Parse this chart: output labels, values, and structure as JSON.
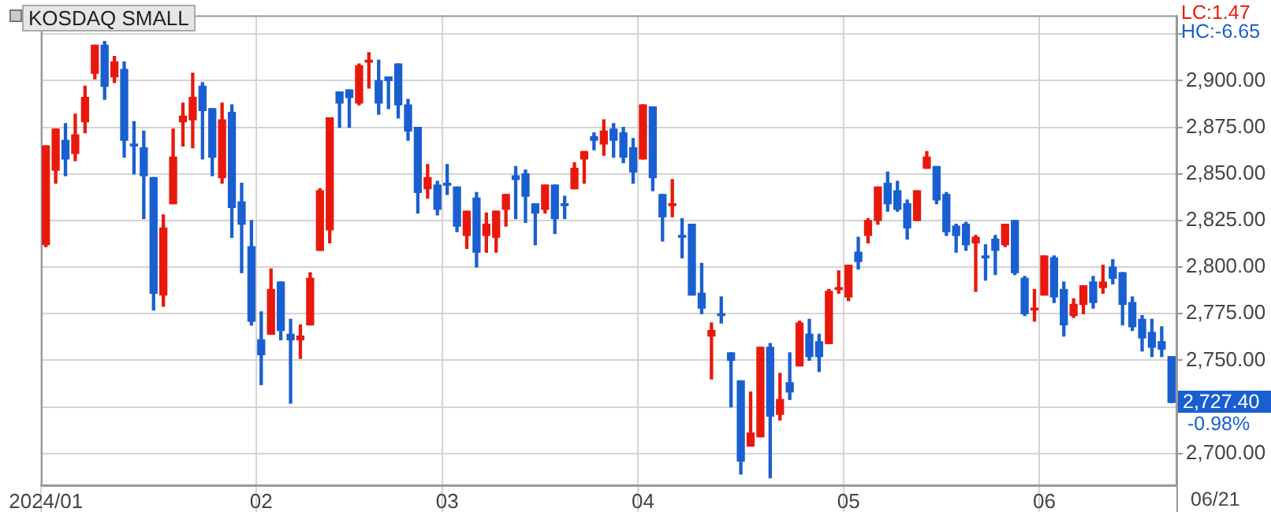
{
  "chart_data": {
    "type": "candlestick",
    "title": "KOSDAQ SMALL",
    "categories": [
      "2024/01",
      null,
      null,
      null,
      null,
      null,
      null,
      null,
      null,
      null,
      null,
      null,
      null,
      null,
      null,
      null,
      null,
      null,
      null,
      null,
      null,
      null,
      "02",
      null,
      null,
      null,
      null,
      null,
      null,
      null,
      null,
      null,
      null,
      null,
      null,
      null,
      null,
      null,
      null,
      null,
      null,
      "03",
      null,
      null,
      null,
      null,
      null,
      null,
      null,
      null,
      null,
      null,
      null,
      null,
      null,
      null,
      null,
      null,
      null,
      null,
      null,
      "04",
      null,
      null,
      null,
      null,
      null,
      null,
      null,
      null,
      null,
      null,
      null,
      null,
      null,
      null,
      null,
      null,
      null,
      null,
      null,
      null,
      "05",
      null,
      null,
      null,
      null,
      null,
      null,
      null,
      null,
      null,
      null,
      null,
      null,
      null,
      null,
      null,
      null,
      null,
      null,
      null,
      "06",
      null,
      null,
      null,
      null,
      null,
      null,
      null,
      null,
      null,
      null,
      null,
      null,
      null
    ],
    "ohlc": [
      [
        2812,
        2865,
        2811,
        2865
      ],
      [
        2852,
        2874,
        2845,
        2874
      ],
      [
        2868,
        2877,
        2849,
        2858
      ],
      [
        2861,
        2882,
        2857,
        2871
      ],
      [
        2878,
        2897,
        2872,
        2891
      ],
      [
        2904,
        2919,
        2901,
        2919
      ],
      [
        2919,
        2921,
        2890,
        2897
      ],
      [
        2902,
        2913,
        2899,
        2910
      ],
      [
        2906,
        2910,
        2859,
        2868
      ],
      [
        2866,
        2878,
        2850,
        2865
      ],
      [
        2864,
        2873,
        2826,
        2849
      ],
      [
        2848,
        2848,
        2777,
        2786
      ],
      [
        2785,
        2828,
        2779,
        2821
      ],
      [
        2834,
        2874,
        2834,
        2859
      ],
      [
        2878,
        2888,
        2865,
        2881
      ],
      [
        2879,
        2904,
        2864,
        2891
      ],
      [
        2897,
        2899,
        2858,
        2884
      ],
      [
        2885,
        2885,
        2849,
        2859
      ],
      [
        2848,
        2888,
        2845,
        2879
      ],
      [
        2883,
        2887,
        2816,
        2832
      ],
      [
        2835,
        2845,
        2797,
        2823
      ],
      [
        2811,
        2825,
        2769,
        2771
      ],
      [
        2761,
        2776,
        2737,
        2753
      ],
      [
        2764,
        2799,
        2764,
        2788
      ],
      [
        2792,
        2792,
        2761,
        2766
      ],
      [
        2764,
        2772,
        2727,
        2761
      ],
      [
        2761,
        2769,
        2751,
        2763
      ],
      [
        2769,
        2797,
        2769,
        2794
      ],
      [
        2809,
        2842,
        2809,
        2841
      ],
      [
        2820,
        2880,
        2813,
        2880
      ],
      [
        2894,
        2894,
        2875,
        2888
      ],
      [
        2895,
        2895,
        2875,
        2891
      ],
      [
        2888,
        2909,
        2887,
        2908
      ],
      [
        2910,
        2915,
        2896,
        2911
      ],
      [
        2900,
        2911,
        2882,
        2888
      ],
      [
        2902,
        2902,
        2885,
        2900
      ],
      [
        2909,
        2909,
        2880,
        2887
      ],
      [
        2887,
        2890,
        2868,
        2873
      ],
      [
        2875,
        2875,
        2829,
        2840
      ],
      [
        2842,
        2855,
        2837,
        2848
      ],
      [
        2844,
        2846,
        2828,
        2831
      ],
      [
        2845,
        2855,
        2839,
        2844
      ],
      [
        2843,
        2843,
        2819,
        2822
      ],
      [
        2817,
        2830,
        2810,
        2830
      ],
      [
        2837,
        2840,
        2800,
        2808
      ],
      [
        2817,
        2829,
        2808,
        2823
      ],
      [
        2816,
        2830,
        2808,
        2830
      ],
      [
        2831,
        2839,
        2822,
        2839
      ],
      [
        2849,
        2854,
        2826,
        2847
      ],
      [
        2850,
        2852,
        2824,
        2838
      ],
      [
        2834,
        2834,
        2812,
        2829
      ],
      [
        2831,
        2844,
        2829,
        2844
      ],
      [
        2844,
        2844,
        2818,
        2826
      ],
      [
        2834,
        2838,
        2826,
        2833
      ],
      [
        2842,
        2856,
        2842,
        2853
      ],
      [
        2858,
        2862,
        2845,
        2862
      ],
      [
        2870,
        2872,
        2863,
        2868
      ],
      [
        2866,
        2879,
        2860,
        2873
      ],
      [
        2874,
        2877,
        2859,
        2868
      ],
      [
        2872,
        2875,
        2856,
        2859
      ],
      [
        2864,
        2869,
        2845,
        2851
      ],
      [
        2858,
        2887,
        2858,
        2887
      ],
      [
        2886,
        2886,
        2841,
        2848
      ],
      [
        2839,
        2839,
        2814,
        2827
      ],
      [
        2833,
        2847,
        2827,
        2834
      ],
      [
        2817,
        2826,
        2805,
        2816
      ],
      [
        2823,
        2823,
        2785,
        2785
      ],
      [
        2786,
        2802,
        2775,
        2778
      ],
      [
        2763,
        2770,
        2740,
        2766
      ],
      [
        2775,
        2784,
        2770,
        2774
      ],
      [
        2754,
        2754,
        2725,
        2750
      ],
      [
        2739,
        2739,
        2689,
        2696
      ],
      [
        2704,
        2733,
        2704,
        2711
      ],
      [
        2709,
        2757,
        2709,
        2757
      ],
      [
        2757,
        2759,
        2687,
        2720
      ],
      [
        2721,
        2743,
        2718,
        2729
      ],
      [
        2738,
        2754,
        2729,
        2733
      ],
      [
        2747,
        2771,
        2747,
        2770
      ],
      [
        2764,
        2772,
        2750,
        2752
      ],
      [
        2760,
        2764,
        2744,
        2752
      ],
      [
        2759,
        2788,
        2759,
        2787
      ],
      [
        2788,
        2798,
        2786,
        2789
      ],
      [
        2784,
        2801,
        2782,
        2801
      ],
      [
        2808,
        2816,
        2799,
        2803
      ],
      [
        2817,
        2826,
        2813,
        2825
      ],
      [
        2825,
        2843,
        2823,
        2843
      ],
      [
        2845,
        2851,
        2830,
        2834
      ],
      [
        2841,
        2846,
        2830,
        2831
      ],
      [
        2834,
        2836,
        2815,
        2821
      ],
      [
        2825,
        2841,
        2825,
        2841
      ],
      [
        2853,
        2862,
        2853,
        2859
      ],
      [
        2854,
        2854,
        2834,
        2836
      ],
      [
        2839,
        2840,
        2817,
        2819
      ],
      [
        2822,
        2823,
        2808,
        2817
      ],
      [
        2823,
        2824,
        2809,
        2812
      ],
      [
        2813,
        2817,
        2787,
        2816
      ],
      [
        2806,
        2812,
        2793,
        2805
      ],
      [
        2815,
        2817,
        2796,
        2809
      ],
      [
        2812,
        2823,
        2811,
        2823
      ],
      [
        2825,
        2825,
        2796,
        2797
      ],
      [
        2794,
        2795,
        2774,
        2775
      ],
      [
        2777,
        2788,
        2771,
        2778
      ],
      [
        2785,
        2806,
        2785,
        2806
      ],
      [
        2805,
        2806,
        2781,
        2784
      ],
      [
        2788,
        2792,
        2763,
        2769
      ],
      [
        2774,
        2783,
        2773,
        2780
      ],
      [
        2780,
        2790,
        2775,
        2790
      ],
      [
        2792,
        2795,
        2778,
        2781
      ],
      [
        2789,
        2801,
        2786,
        2792
      ],
      [
        2800,
        2804,
        2791,
        2794
      ],
      [
        2797,
        2797,
        2769,
        2780
      ],
      [
        2781,
        2784,
        2766,
        2768
      ],
      [
        2772,
        2774,
        2755,
        2762
      ],
      [
        2765,
        2772,
        2752,
        2757
      ],
      [
        2760,
        2768,
        2752,
        2756
      ],
      [
        2752,
        2752,
        2727.4,
        2727.4
      ]
    ],
    "colors": [
      "#e8190c",
      "#e8190c",
      "#1a5fd0",
      "#e8190c",
      "#e8190c",
      "#e8190c",
      "#1a5fd0",
      "#e8190c",
      "#1a5fd0",
      "#1a5fd0",
      "#1a5fd0",
      "#1a5fd0",
      "#e8190c",
      "#e8190c",
      "#e8190c",
      "#e8190c",
      "#1a5fd0",
      "#1a5fd0",
      "#e8190c",
      "#1a5fd0",
      "#1a5fd0",
      "#1a5fd0",
      "#1a5fd0",
      "#e8190c",
      "#1a5fd0",
      "#1a5fd0",
      "#e8190c",
      "#e8190c",
      "#e8190c",
      "#e8190c",
      "#1a5fd0",
      "#1a5fd0",
      "#e8190c",
      "#e8190c",
      "#1a5fd0",
      "#1a5fd0",
      "#1a5fd0",
      "#1a5fd0",
      "#1a5fd0",
      "#e8190c",
      "#1a5fd0",
      "#1a5fd0",
      "#1a5fd0",
      "#e8190c",
      "#1a5fd0",
      "#e8190c",
      "#e8190c",
      "#e8190c",
      "#1a5fd0",
      "#1a5fd0",
      "#1a5fd0",
      "#e8190c",
      "#1a5fd0",
      "#1a5fd0",
      "#e8190c",
      "#e8190c",
      "#1a5fd0",
      "#e8190c",
      "#1a5fd0",
      "#1a5fd0",
      "#1a5fd0",
      "#e8190c",
      "#1a5fd0",
      "#1a5fd0",
      "#e8190c",
      "#1a5fd0",
      "#1a5fd0",
      "#1a5fd0",
      "#e8190c",
      "#1a5fd0",
      "#1a5fd0",
      "#1a5fd0",
      "#e8190c",
      "#e8190c",
      "#1a5fd0",
      "#e8190c",
      "#1a5fd0",
      "#e8190c",
      "#1a5fd0",
      "#1a5fd0",
      "#e8190c",
      "#e8190c",
      "#e8190c",
      "#1a5fd0",
      "#e8190c",
      "#e8190c",
      "#1a5fd0",
      "#1a5fd0",
      "#1a5fd0",
      "#e8190c",
      "#e8190c",
      "#1a5fd0",
      "#1a5fd0",
      "#1a5fd0",
      "#1a5fd0",
      "#e8190c",
      "#1a5fd0",
      "#1a5fd0",
      "#e8190c",
      "#1a5fd0",
      "#1a5fd0",
      "#e8190c",
      "#e8190c",
      "#1a5fd0",
      "#1a5fd0",
      "#e8190c",
      "#e8190c",
      "#1a5fd0",
      "#e8190c",
      "#1a5fd0",
      "#1a5fd0",
      "#1a5fd0",
      "#1a5fd0",
      "#1a5fd0",
      "#1a5fd0",
      "#1a5fd0"
    ],
    "ylim": [
      2683,
      2935
    ],
    "yticks": [
      {
        "value": 2700,
        "label": "2,700.00"
      },
      {
        "value": 2725,
        "label": null
      },
      {
        "value": 2750,
        "label": "2,750.00"
      },
      {
        "value": 2775,
        "label": "2,775.00"
      },
      {
        "value": 2800,
        "label": "2,800.00"
      },
      {
        "value": 2825,
        "label": "2,825.00"
      },
      {
        "value": 2850,
        "label": "2,850.00"
      },
      {
        "value": 2875,
        "label": "2,875.00"
      },
      {
        "value": 2900,
        "label": "2,900.00"
      },
      {
        "value": 2925,
        "label": null
      }
    ],
    "grid": true,
    "annotations": [
      "LC:1.47",
      "HC:-6.65",
      "2,727.40",
      "-0.98%",
      "06/21"
    ]
  }
}
